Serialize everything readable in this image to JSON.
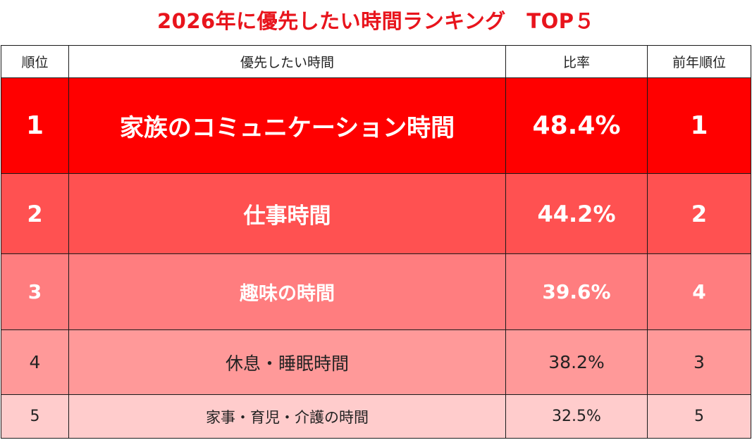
{
  "title": "2026年に優先したい時間ランキング　TOP５",
  "table": {
    "headers": [
      "順位",
      "優先したい時間",
      "比率",
      "前年順位"
    ],
    "rows": [
      {
        "rank": "1",
        "item": "家族のコミュニケーション時間",
        "ratio": "48.4%",
        "prev_rank": "1"
      },
      {
        "rank": "2",
        "item": "仕事時間",
        "ratio": "44.2%",
        "prev_rank": "2"
      },
      {
        "rank": "3",
        "item": "趣味の時間",
        "ratio": "39.6%",
        "prev_rank": "4"
      },
      {
        "rank": "4",
        "item": "休息・睡眠時間",
        "ratio": "38.2%",
        "prev_rank": "3"
      },
      {
        "rank": "5",
        "item": "家事・育児・介護の時間",
        "ratio": "32.5%",
        "prev_rank": "5"
      }
    ]
  },
  "colors": {
    "title": "#e8141c",
    "row1": "#ff0000",
    "row2": "#ff5151",
    "row3": "#ff7d7f",
    "row4": "#ff9999",
    "row5": "#ffcccc"
  }
}
